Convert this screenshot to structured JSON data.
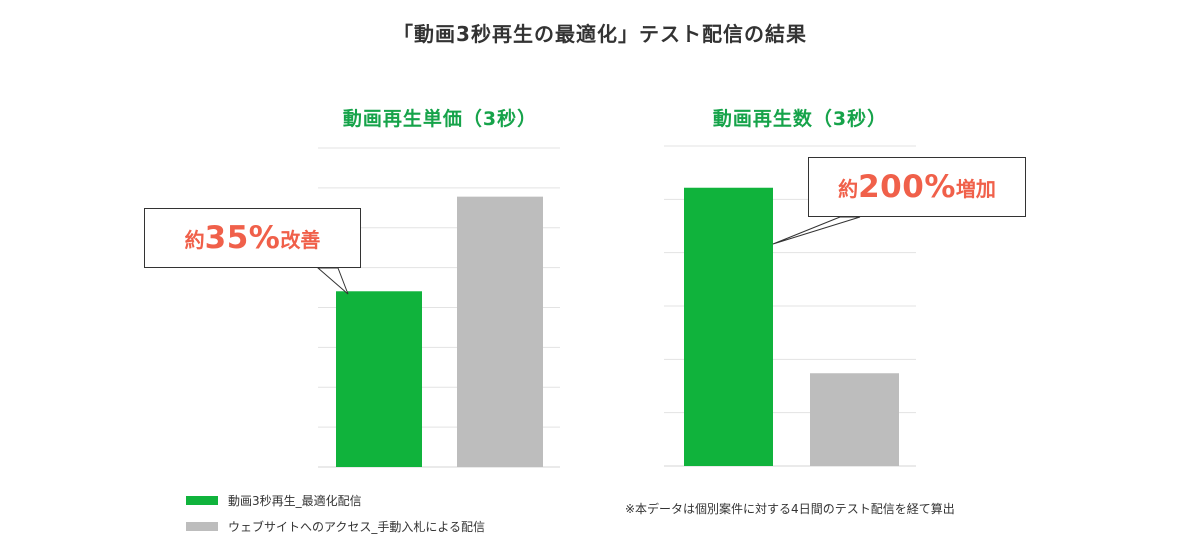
{
  "title": "「動画3秒再生の最適化」テスト配信の結果",
  "colors": {
    "accent": "#10b33c",
    "muted": "#bdbdbd",
    "highlight": "#f0604a",
    "title_green": "#16a34a",
    "grid": "#e3e3e3"
  },
  "chart_data": [
    {
      "type": "bar",
      "title": "動画再生単価（3秒）",
      "categories": [
        "動画3秒再生_最適化配信",
        "ウェブサイトへのアクセス_手動入札による配信"
      ],
      "values": [
        0.65,
        1.0
      ],
      "ylim": [
        0,
        1.18
      ],
      "grid": true,
      "ytick_labels": false,
      "callout": {
        "prefix": "約",
        "value": "35%",
        "suffix": "改善"
      }
    },
    {
      "type": "bar",
      "title": "動画再生数（3秒）",
      "categories": [
        "動画3秒再生_最適化配信",
        "ウェブサイトへのアクセス_手動入札による配信"
      ],
      "values": [
        3.0,
        1.0
      ],
      "ylim": [
        0,
        3.45
      ],
      "grid": true,
      "ytick_labels": false,
      "callout": {
        "prefix": "約",
        "value": "200%",
        "suffix": "増加"
      }
    }
  ],
  "legend": [
    {
      "label": "動画3秒再生_最適化配信",
      "color": "#10b33c"
    },
    {
      "label": "ウェブサイトへのアクセス_手動入札による配信",
      "color": "#bdbdbd"
    }
  ],
  "footnote": "※本データは個別案件に対する4日間のテスト配信を経て算出"
}
